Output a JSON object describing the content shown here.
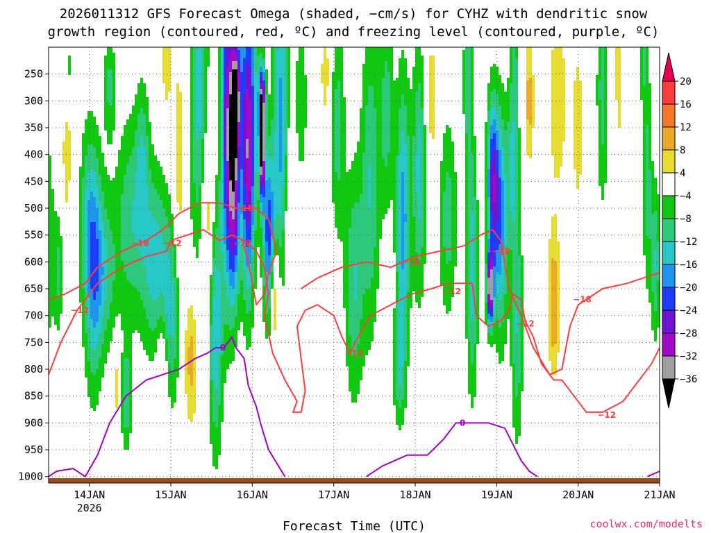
{
  "chart_data": {
    "type": "heatmap",
    "title_line1": "2026011312 GFS Forecast Omega (shaded, −cm/s) for CYHZ with dendritic snow",
    "title_line2": "growth region (contoured, red, ºC) and freezing level (contoured, purple, ºC)",
    "xlabel": "Forecast Time (UTC)",
    "credit": "coolwx.com/modelts",
    "x_ticks": [
      {
        "t": 0.5,
        "label": "14JAN",
        "sub": "2026"
      },
      {
        "t": 1.5,
        "label": "15JAN",
        "sub": ""
      },
      {
        "t": 2.5,
        "label": "16JAN",
        "sub": ""
      },
      {
        "t": 3.5,
        "label": "17JAN",
        "sub": ""
      },
      {
        "t": 4.5,
        "label": "18JAN",
        "sub": ""
      },
      {
        "t": 5.5,
        "label": "19JAN",
        "sub": ""
      },
      {
        "t": 6.5,
        "label": "20JAN",
        "sub": ""
      },
      {
        "t": 7.5,
        "label": "21JAN",
        "sub": ""
      }
    ],
    "x_range_days": [
      0,
      7.5
    ],
    "y_ticks": [
      250,
      300,
      350,
      400,
      450,
      500,
      550,
      600,
      650,
      700,
      750,
      800,
      850,
      900,
      950,
      1000
    ],
    "y_range_hpa": [
      200,
      1012
    ],
    "colorbar": {
      "labels": [
        "20",
        "16",
        "12",
        "8",
        "4",
        "−4",
        "−8",
        "−12",
        "−16",
        "−20",
        "−24",
        "−28",
        "−32",
        "−36"
      ],
      "colors": [
        "#e8004a",
        "#ff3c3c",
        "#f5782a",
        "#e8aa28",
        "#e6dc32",
        "#ffffff",
        "#0fc80f",
        "#2ec87a",
        "#28c8c8",
        "#1e96f0",
        "#1e3cff",
        "#6e14d2",
        "#a00ac8",
        "#a0a0a0",
        "#000000"
      ]
    },
    "omega_features": [
      {
        "t": 0.0,
        "p": 560,
        "omega": -8,
        "sd": 0.05,
        "sp": 140
      },
      {
        "t": 0.12,
        "p": 620,
        "omega": -9,
        "sd": 0.04,
        "sp": 80
      },
      {
        "t": 0.22,
        "p": 380,
        "omega": 6,
        "sd": 0.04,
        "sp": 130
      },
      {
        "t": 0.32,
        "p": 330,
        "omega": 5,
        "sd": 0.05,
        "sp": 90
      },
      {
        "t": 0.25,
        "p": 250,
        "omega": -8,
        "sd": 0.05,
        "sp": 60
      },
      {
        "t": 0.55,
        "p": 650,
        "omega": -14,
        "sd": 0.08,
        "sp": 140
      },
      {
        "t": 0.5,
        "p": 500,
        "omega": -10,
        "sd": 0.1,
        "sp": 120
      },
      {
        "t": 0.75,
        "p": 270,
        "omega": -9,
        "sd": 0.05,
        "sp": 70
      },
      {
        "t": 0.7,
        "p": 620,
        "omega": -10,
        "sd": 0.1,
        "sp": 100
      },
      {
        "t": 0.85,
        "p": 830,
        "omega": 7,
        "sd": 0.04,
        "sp": 60
      },
      {
        "t": 0.95,
        "p": 850,
        "omega": -12,
        "sd": 0.05,
        "sp": 70
      },
      {
        "t": 1.0,
        "p": 520,
        "omega": -11,
        "sd": 0.12,
        "sp": 130
      },
      {
        "t": 1.15,
        "p": 400,
        "omega": -9,
        "sd": 0.06,
        "sp": 100
      },
      {
        "t": 1.3,
        "p": 600,
        "omega": -14,
        "sd": 0.12,
        "sp": 120
      },
      {
        "t": 1.45,
        "p": 230,
        "omega": 6,
        "sd": 0.05,
        "sp": 80
      },
      {
        "t": 1.4,
        "p": 800,
        "omega": 9,
        "sd": 0.05,
        "sp": 80
      },
      {
        "t": 1.5,
        "p": 700,
        "omega": -12,
        "sd": 0.08,
        "sp": 120
      },
      {
        "t": 1.6,
        "p": 420,
        "omega": 7,
        "sd": 0.05,
        "sp": 150
      },
      {
        "t": 1.75,
        "p": 780,
        "omega": 10,
        "sd": 0.06,
        "sp": 90
      },
      {
        "t": 1.85,
        "p": 300,
        "omega": -14,
        "sd": 0.08,
        "sp": 220
      },
      {
        "t": 1.95,
        "p": 520,
        "omega": 10,
        "sd": 0.06,
        "sp": 140
      },
      {
        "t": 2.05,
        "p": 720,
        "omega": -16,
        "sd": 0.06,
        "sp": 160
      },
      {
        "t": 2.2,
        "p": 330,
        "omega": -28,
        "sd": 0.06,
        "sp": 220
      },
      {
        "t": 2.28,
        "p": 480,
        "omega": -22,
        "sd": 0.05,
        "sp": 140
      },
      {
        "t": 2.3,
        "p": 290,
        "omega": -26,
        "sd": 0.04,
        "sp": 80
      },
      {
        "t": 2.45,
        "p": 300,
        "omega": -20,
        "sd": 0.08,
        "sp": 200
      },
      {
        "t": 2.45,
        "p": 460,
        "omega": -16,
        "sd": 0.05,
        "sp": 160
      },
      {
        "t": 2.62,
        "p": 400,
        "omega": -36,
        "sd": 0.025,
        "sp": 60
      },
      {
        "t": 2.62,
        "p": 300,
        "omega": -30,
        "sd": 0.03,
        "sp": 50
      },
      {
        "t": 2.7,
        "p": 550,
        "omega": -22,
        "sd": 0.05,
        "sp": 110
      },
      {
        "t": 2.78,
        "p": 660,
        "omega": 12,
        "sd": 0.04,
        "sp": 70
      },
      {
        "t": 2.85,
        "p": 350,
        "omega": -18,
        "sd": 0.07,
        "sp": 200
      },
      {
        "t": 2.95,
        "p": 500,
        "omega": 6,
        "sd": 0.05,
        "sp": 120
      },
      {
        "t": 3.1,
        "p": 300,
        "omega": -8,
        "sd": 0.05,
        "sp": 100
      },
      {
        "t": 3.4,
        "p": 250,
        "omega": 6,
        "sd": 0.05,
        "sp": 70
      },
      {
        "t": 3.55,
        "p": 350,
        "omega": -10,
        "sd": 0.06,
        "sp": 140
      },
      {
        "t": 3.75,
        "p": 640,
        "omega": -12,
        "sd": 0.08,
        "sp": 150
      },
      {
        "t": 3.95,
        "p": 450,
        "omega": -12,
        "sd": 0.08,
        "sp": 200
      },
      {
        "t": 4.15,
        "p": 320,
        "omega": -10,
        "sd": 0.06,
        "sp": 130
      },
      {
        "t": 4.35,
        "p": 520,
        "omega": -18,
        "sd": 0.06,
        "sp": 180
      },
      {
        "t": 4.3,
        "p": 800,
        "omega": -10,
        "sd": 0.05,
        "sp": 70
      },
      {
        "t": 4.55,
        "p": 430,
        "omega": -14,
        "sd": 0.06,
        "sp": 160
      },
      {
        "t": 4.7,
        "p": 300,
        "omega": 6,
        "sd": 0.06,
        "sp": 110
      },
      {
        "t": 4.9,
        "p": 520,
        "omega": -10,
        "sd": 0.08,
        "sp": 130
      },
      {
        "t": 5.15,
        "p": 250,
        "omega": -10,
        "sd": 0.04,
        "sp": 140
      },
      {
        "t": 5.2,
        "p": 620,
        "omega": -14,
        "sd": 0.05,
        "sp": 160
      },
      {
        "t": 5.45,
        "p": 450,
        "omega": -24,
        "sd": 0.05,
        "sp": 110
      },
      {
        "t": 5.42,
        "p": 650,
        "omega": -34,
        "sd": 0.03,
        "sp": 50
      },
      {
        "t": 5.55,
        "p": 530,
        "omega": -18,
        "sd": 0.06,
        "sp": 150
      },
      {
        "t": 5.7,
        "p": 420,
        "omega": -14,
        "sd": 0.05,
        "sp": 100
      },
      {
        "t": 5.75,
        "p": 720,
        "omega": -12,
        "sd": 0.05,
        "sp": 150
      },
      {
        "t": 5.72,
        "p": 230,
        "omega": -8,
        "sd": 0.04,
        "sp": 60
      },
      {
        "t": 5.9,
        "p": 300,
        "omega": 10,
        "sd": 0.04,
        "sp": 80
      },
      {
        "t": 6.2,
        "p": 680,
        "omega": 12,
        "sd": 0.05,
        "sp": 90
      },
      {
        "t": 6.25,
        "p": 300,
        "omega": 6,
        "sd": 0.1,
        "sp": 150
      },
      {
        "t": 6.5,
        "p": 350,
        "omega": 6,
        "sd": 0.05,
        "sp": 120
      },
      {
        "t": 6.8,
        "p": 280,
        "omega": -10,
        "sd": 0.05,
        "sp": 150
      },
      {
        "t": 7.0,
        "p": 250,
        "omega": 5,
        "sd": 0.05,
        "sp": 150
      },
      {
        "t": 7.35,
        "p": 450,
        "omega": -10,
        "sd": 0.04,
        "sp": 140
      },
      {
        "t": 7.45,
        "p": 600,
        "omega": -12,
        "sd": 0.04,
        "sp": 100
      },
      {
        "t": 7.3,
        "p": 220,
        "omega": -8,
        "sd": 0.04,
        "sp": 60
      }
    ],
    "terrain_hpa": 1003,
    "isotherm_m12_label": "−12",
    "isotherm_m18_label": "−18",
    "freezing_label": "0",
    "isotherm_m12": [
      [
        [
          0.0,
          810
        ],
        [
          0.15,
          750
        ],
        [
          0.35,
          690
        ],
        [
          0.6,
          640
        ],
        [
          0.9,
          610
        ],
        [
          1.2,
          590
        ],
        [
          1.45,
          580
        ],
        [
          1.5,
          560
        ],
        [
          1.7,
          550
        ],
        [
          1.9,
          540
        ],
        [
          2.1,
          560
        ],
        [
          2.25,
          550
        ],
        [
          2.4,
          560
        ],
        [
          2.55,
          580
        ],
        [
          2.65,
          610
        ],
        [
          2.7,
          660
        ],
        [
          2.65,
          700
        ],
        [
          2.75,
          770
        ],
        [
          2.9,
          820
        ],
        [
          3.05,
          860
        ],
        [
          3.0,
          880
        ],
        [
          3.1,
          880
        ],
        [
          3.15,
          840
        ],
        [
          3.1,
          780
        ],
        [
          3.05,
          720
        ],
        [
          3.15,
          690
        ],
        [
          3.3,
          680
        ],
        [
          3.5,
          700
        ],
        [
          3.6,
          740
        ],
        [
          3.7,
          770
        ],
        [
          3.8,
          740
        ],
        [
          3.95,
          700
        ],
        [
          4.2,
          680
        ],
        [
          4.45,
          660
        ],
        [
          4.7,
          650
        ],
        [
          4.9,
          640
        ],
        [
          5.2,
          640
        ]
      ],
      [
        [
          5.2,
          640
        ],
        [
          5.25,
          700
        ],
        [
          5.4,
          720
        ],
        [
          5.55,
          710
        ],
        [
          5.65,
          690
        ],
        [
          5.7,
          660
        ],
        [
          5.8,
          670
        ],
        [
          5.85,
          710
        ],
        [
          5.95,
          740
        ],
        [
          6.05,
          790
        ],
        [
          6.2,
          820
        ],
        [
          6.3,
          820
        ],
        [
          6.45,
          850
        ],
        [
          6.6,
          880
        ],
        [
          6.8,
          880
        ],
        [
          7.05,
          860
        ],
        [
          7.2,
          830
        ],
        [
          7.4,
          790
        ],
        [
          7.5,
          760
        ]
      ]
    ],
    "isotherm_m18": [
      [
        [
          0.0,
          670
        ],
        [
          0.2,
          660
        ],
        [
          0.45,
          640
        ],
        [
          0.6,
          610
        ],
        [
          0.9,
          580
        ],
        [
          1.2,
          560
        ],
        [
          1.4,
          540
        ],
        [
          1.6,
          510
        ],
        [
          1.85,
          490
        ],
        [
          2.1,
          490
        ],
        [
          2.3,
          500
        ],
        [
          2.55,
          500
        ],
        [
          2.7,
          520
        ],
        [
          2.8,
          580
        ],
        [
          2.7,
          620
        ],
        [
          2.65,
          660
        ],
        [
          2.55,
          680
        ],
        [
          2.45,
          600
        ],
        [
          2.4,
          570
        ]
      ],
      [
        [
          3.1,
          650
        ],
        [
          3.3,
          630
        ],
        [
          3.6,
          610
        ],
        [
          3.9,
          600
        ],
        [
          4.2,
          610
        ],
        [
          4.5,
          590
        ],
        [
          4.8,
          580
        ],
        [
          5.1,
          570
        ],
        [
          5.3,
          550
        ],
        [
          5.45,
          540
        ],
        [
          5.55,
          560
        ],
        [
          5.6,
          600
        ],
        [
          5.65,
          650
        ],
        [
          5.8,
          700
        ],
        [
          5.95,
          760
        ],
        [
          6.15,
          810
        ],
        [
          6.3,
          800
        ],
        [
          6.4,
          720
        ],
        [
          6.5,
          680
        ],
        [
          6.6,
          670
        ],
        [
          6.8,
          650
        ],
        [
          7.1,
          640
        ],
        [
          7.3,
          630
        ],
        [
          7.5,
          620
        ]
      ]
    ],
    "freezing_level": [
      [
        [
          0.0,
          1000
        ],
        [
          0.1,
          990
        ],
        [
          0.3,
          985
        ],
        [
          0.45,
          1000
        ],
        [
          0.6,
          960
        ],
        [
          0.75,
          900
        ],
        [
          0.95,
          850
        ],
        [
          1.2,
          820
        ],
        [
          1.4,
          810
        ],
        [
          1.6,
          800
        ],
        [
          1.8,
          780
        ],
        [
          1.95,
          770
        ],
        [
          2.05,
          760
        ],
        [
          2.15,
          760
        ],
        [
          2.25,
          740
        ],
        [
          2.3,
          760
        ],
        [
          2.4,
          780
        ],
        [
          2.45,
          830
        ],
        [
          2.55,
          870
        ],
        [
          2.6,
          900
        ],
        [
          2.7,
          950
        ],
        [
          2.9,
          1000
        ]
      ],
      [
        [
          3.9,
          1000
        ],
        [
          4.1,
          980
        ],
        [
          4.4,
          960
        ],
        [
          4.65,
          960
        ],
        [
          4.85,
          930
        ],
        [
          5.0,
          900
        ],
        [
          5.2,
          900
        ],
        [
          5.4,
          900
        ],
        [
          5.6,
          910
        ],
        [
          5.7,
          940
        ],
        [
          5.8,
          970
        ],
        [
          5.9,
          990
        ],
        [
          6.0,
          1000
        ]
      ],
      [
        [
          7.35,
          1000
        ],
        [
          7.5,
          990
        ]
      ]
    ]
  }
}
